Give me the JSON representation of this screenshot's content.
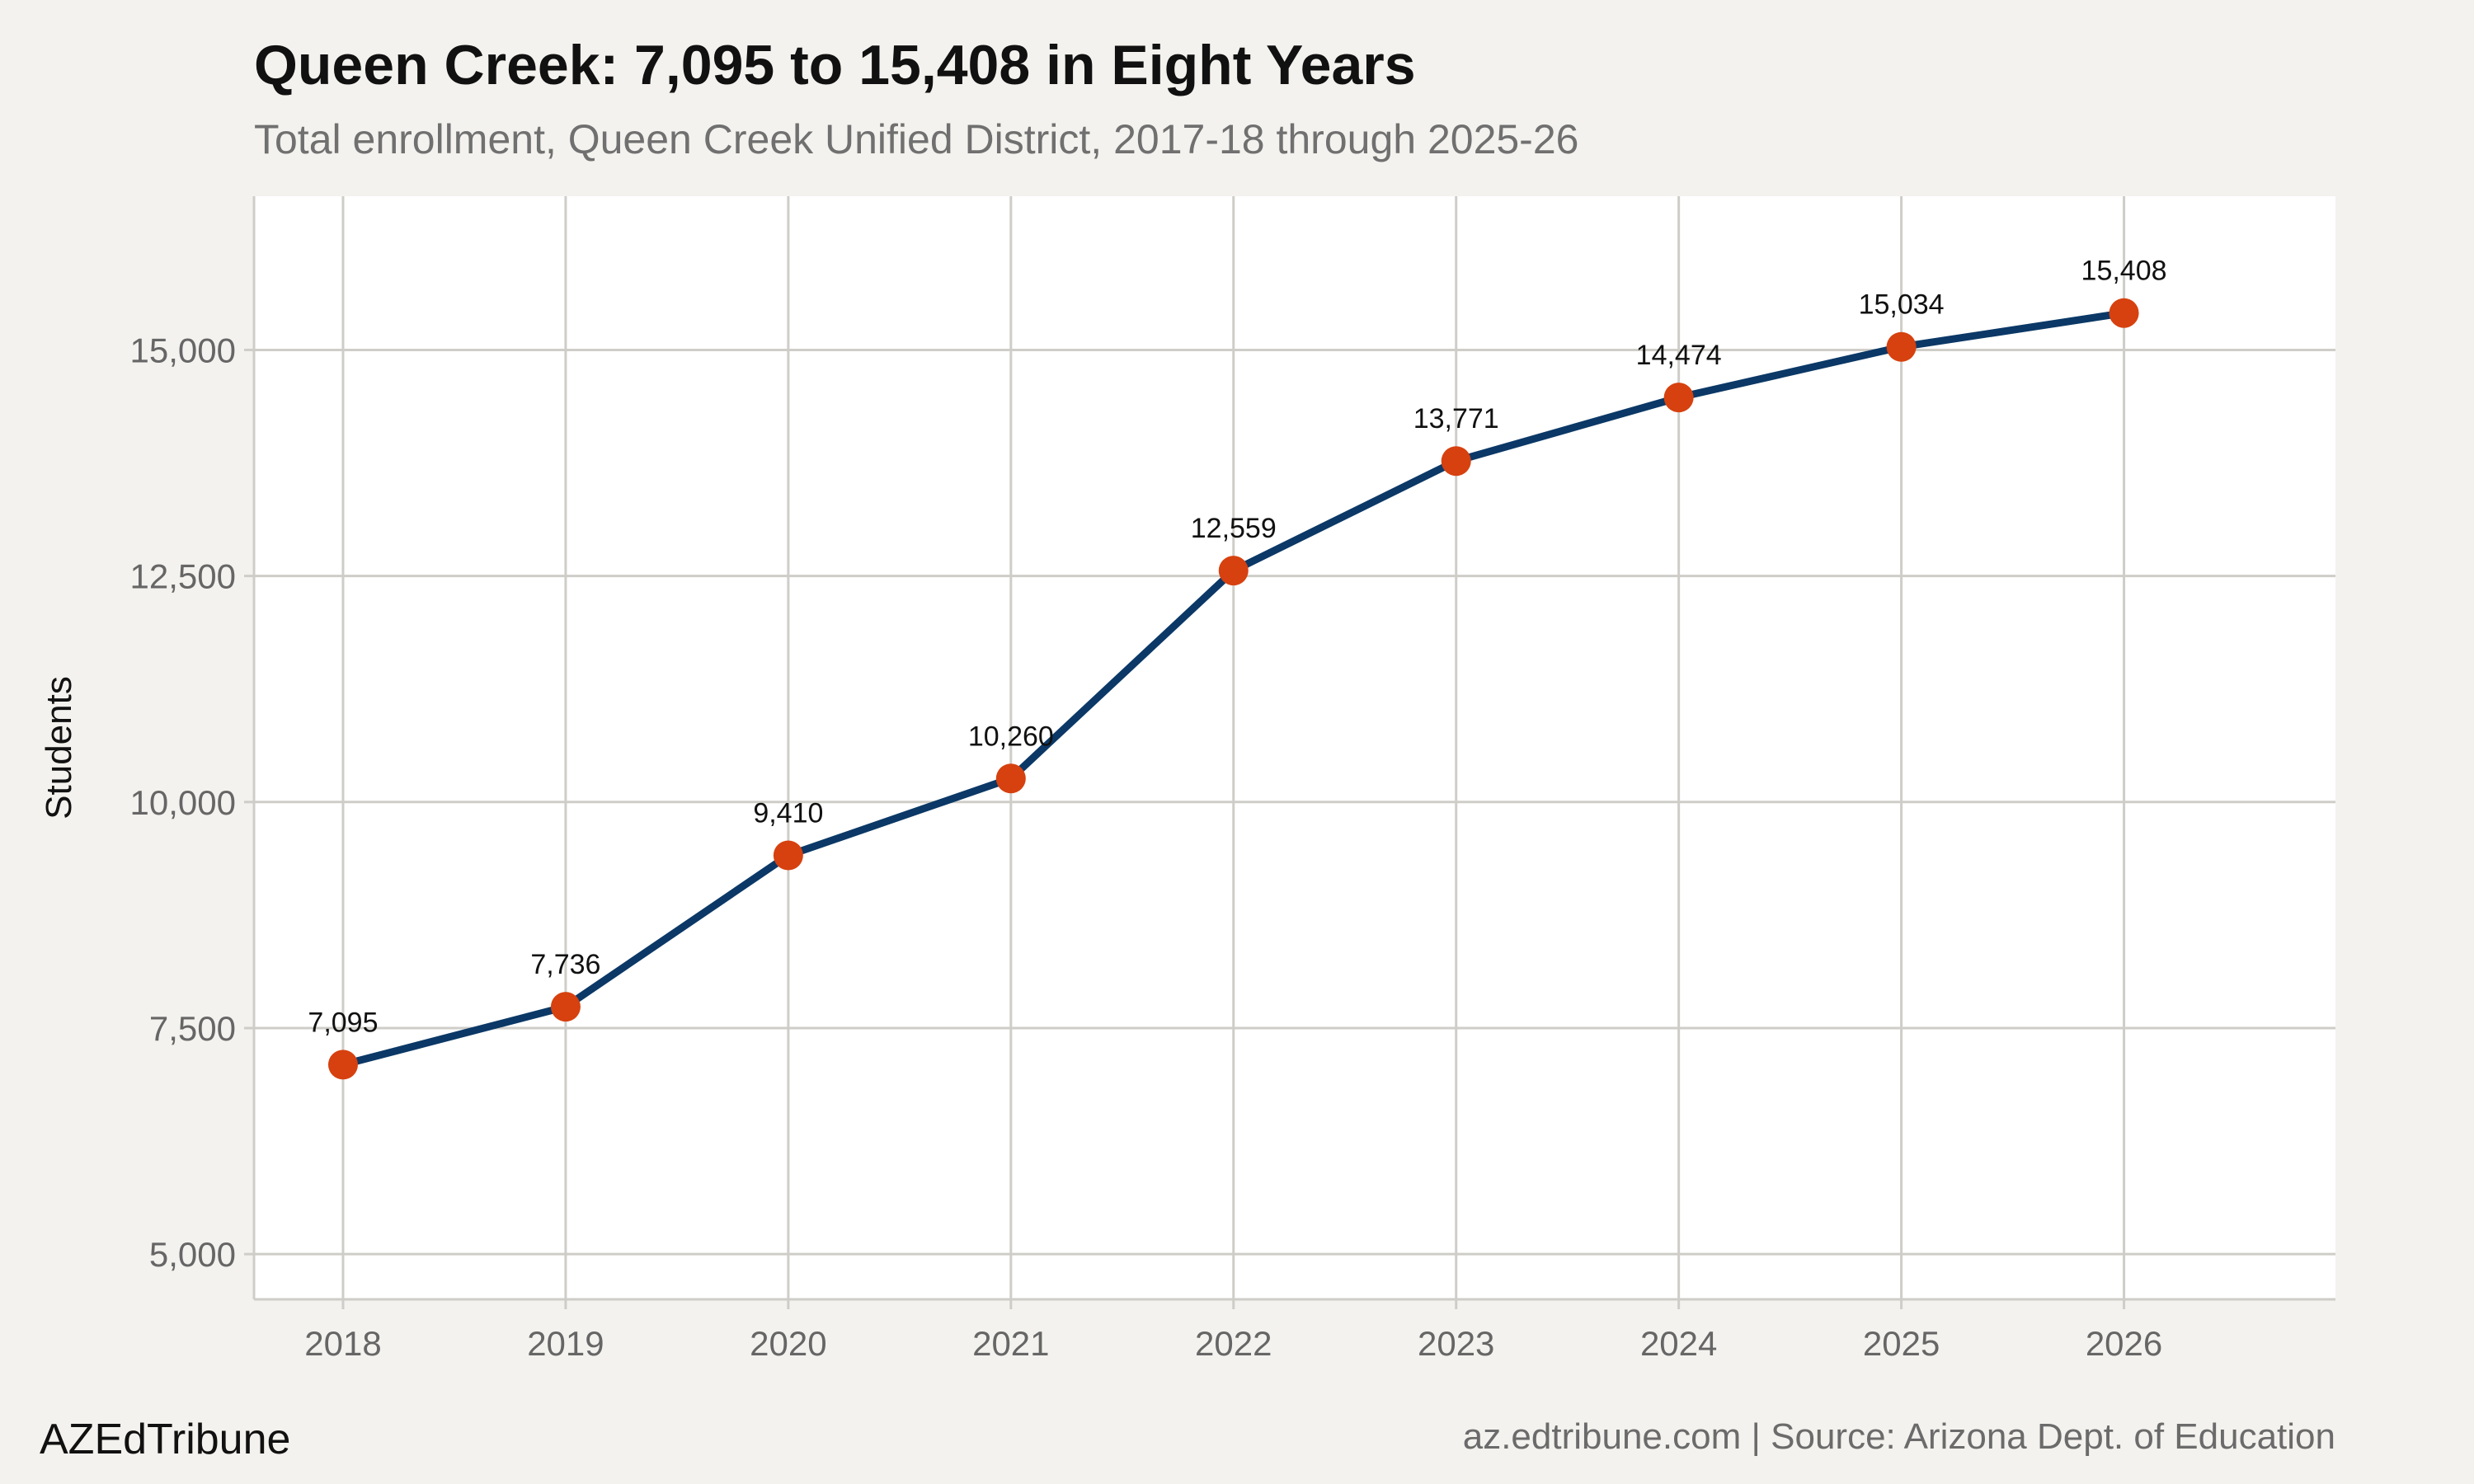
{
  "header": {
    "title": "Queen Creek: 7,095 to 15,408 in Eight Years",
    "subtitle": "Total enrollment, Queen Creek Unified District, 2017-18 through 2025-26"
  },
  "footer": {
    "brand": "AZEdTribune",
    "source": "az.edtribune.com | Source: Arizona Dept. of Education"
  },
  "colors": {
    "background": "#f4f2ee",
    "panel": "#ffffff",
    "grid": "#cfcdc8",
    "line": "#0b3866",
    "point": "#d6410f"
  },
  "chart_data": {
    "type": "line",
    "title": "Queen Creek: 7,095 to 15,408 in Eight Years",
    "subtitle": "Total enrollment, Queen Creek Unified District, 2017-18 through 2025-26",
    "xlabel": "",
    "ylabel": "Students",
    "x": [
      2018,
      2019,
      2020,
      2021,
      2022,
      2023,
      2024,
      2025,
      2026
    ],
    "x_tick_labels": [
      "2018",
      "2019",
      "2020",
      "2021",
      "2022",
      "2023",
      "2024",
      "2025",
      "2026"
    ],
    "series": [
      {
        "values": [
          7095,
          7736,
          9410,
          10260,
          12559,
          13771,
          14474,
          15034,
          15408
        ],
        "labels": [
          "7,095",
          "7,736",
          "9,410",
          "10,260",
          "12,559",
          "13,771",
          "14,474",
          "15,034",
          "15,408"
        ]
      }
    ],
    "y_ticks": [
      5000,
      7500,
      10000,
      12500,
      15000
    ],
    "y_tick_labels": [
      "5,000",
      "7,500",
      "10,000",
      "12,500",
      "15,000"
    ],
    "xlim": [
      2017.6,
      2026.95
    ],
    "ylim": [
      4500,
      16700
    ],
    "grid": true,
    "legend": "none"
  }
}
